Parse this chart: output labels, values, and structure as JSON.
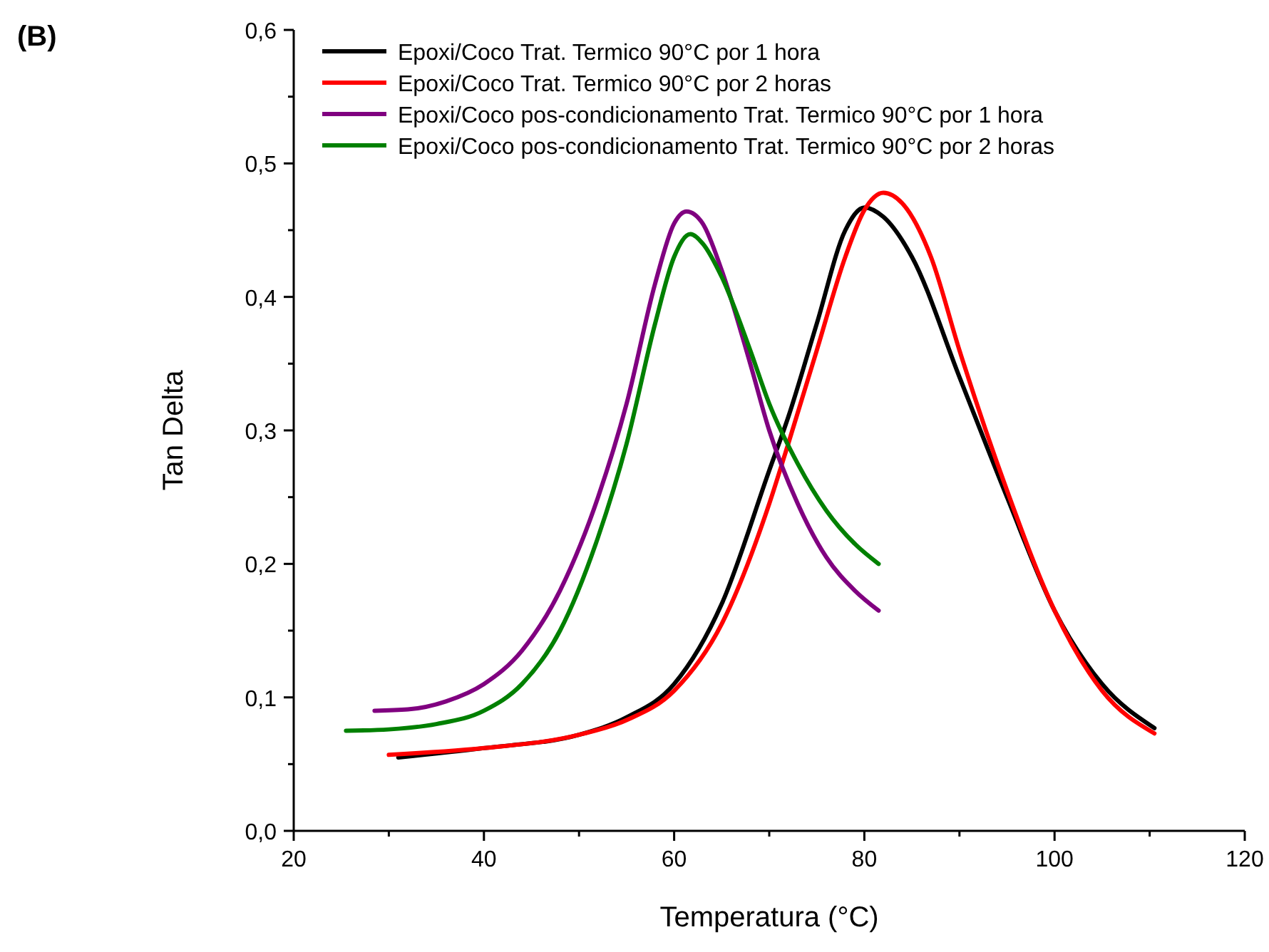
{
  "chart_data": {
    "type": "line",
    "xlabel": "Temperatura (°C)",
    "ylabel": "Tan Delta",
    "annotations": [
      "(B)"
    ],
    "xlim": [
      20,
      120
    ],
    "xticks": [
      20,
      40,
      60,
      80,
      100,
      120
    ],
    "ylim": [
      0,
      0.6
    ],
    "yticks": [
      {
        "value": 0,
        "label": "0,0"
      },
      {
        "value": 0.1,
        "label": "0,1"
      },
      {
        "value": 0.2,
        "label": "0,2"
      },
      {
        "value": 0.3,
        "label": "0,3"
      },
      {
        "value": 0.4,
        "label": "0,4"
      },
      {
        "value": 0.5,
        "label": "0,5"
      },
      {
        "value": 0.6,
        "label": "0,6"
      }
    ],
    "grid": false,
    "legend": "top left",
    "marker": "none",
    "line_style": "solid",
    "series": [
      {
        "name": "Epoxi/Coco Trat. Termico 90°C por 1 hora",
        "color": "#000000",
        "x": [
          31,
          40,
          50,
          55,
          60,
          65,
          70,
          72,
          75,
          78,
          80,
          82,
          85,
          90,
          95,
          100,
          105,
          110.5
        ],
        "values": [
          0.055,
          0.062,
          0.072,
          0.085,
          0.11,
          0.17,
          0.27,
          0.31,
          0.38,
          0.45,
          0.467,
          0.46,
          0.43,
          0.34,
          0.25,
          0.165,
          0.11,
          0.077
        ]
      },
      {
        "name": "Epoxi/Coco Trat. Termico 90°C por 2 horas",
        "color": "#ff0000",
        "x": [
          30,
          40,
          50,
          55,
          60,
          65,
          70,
          72,
          75,
          78,
          80,
          82,
          84,
          87,
          90,
          95,
          100,
          105,
          110.5
        ],
        "values": [
          0.057,
          0.062,
          0.072,
          0.083,
          0.105,
          0.155,
          0.245,
          0.29,
          0.36,
          0.43,
          0.465,
          0.478,
          0.47,
          0.43,
          0.36,
          0.255,
          0.165,
          0.105,
          0.073
        ]
      },
      {
        "name": "Epoxi/Coco pos-condicionamento Trat. Termico 90°C por 1 hora",
        "color": "#800080",
        "x": [
          28.5,
          32,
          36,
          40,
          44,
          48,
          52,
          55,
          58,
          60,
          61.3,
          63,
          65,
          68,
          70,
          73,
          76,
          79,
          81.5
        ],
        "values": [
          0.09,
          0.091,
          0.097,
          0.11,
          0.135,
          0.18,
          0.25,
          0.32,
          0.41,
          0.455,
          0.464,
          0.455,
          0.42,
          0.35,
          0.3,
          0.245,
          0.205,
          0.18,
          0.165
        ]
      },
      {
        "name": "Epoxi/Coco pos-condicionamento Trat. Termico 90°C por 2 horas",
        "color": "#008000",
        "x": [
          25.5,
          30,
          35,
          40,
          44,
          48,
          52,
          55,
          58,
          60,
          61.7,
          63,
          65,
          68,
          70,
          73,
          76,
          79,
          81.5
        ],
        "values": [
          0.075,
          0.076,
          0.08,
          0.09,
          0.11,
          0.15,
          0.22,
          0.29,
          0.38,
          0.43,
          0.447,
          0.44,
          0.415,
          0.36,
          0.32,
          0.275,
          0.24,
          0.215,
          0.2
        ]
      }
    ]
  }
}
